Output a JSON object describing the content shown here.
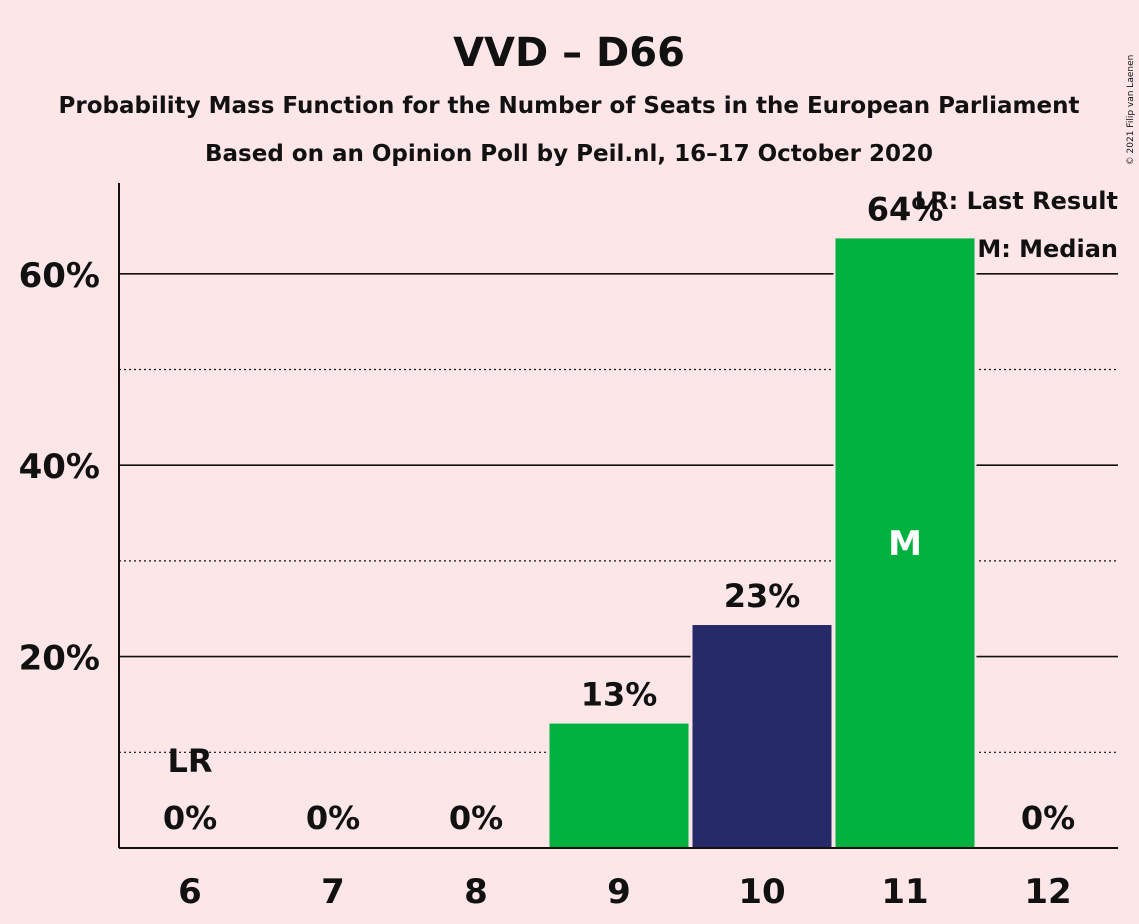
{
  "title": "VVD – D66",
  "subtitle": "Probability Mass Function for the Number of Seats in the European Parliament",
  "subtitle2": "Based on an Opinion Poll by Peil.nl, 16–17 October 2020",
  "copyright": "© 2021 Filip van Laenen",
  "legend": {
    "lr": "LR: Last Result",
    "median": "M: Median"
  },
  "colors": {
    "background": "#fce6e8",
    "green": "#00b140",
    "navy": "#262a68",
    "text": "#111111"
  },
  "chart_data": {
    "type": "bar",
    "categories": [
      "6",
      "7",
      "8",
      "9",
      "10",
      "11",
      "12"
    ],
    "values": [
      0,
      0,
      0,
      13,
      23.3,
      63.7,
      0
    ],
    "value_labels": [
      "0%",
      "0%",
      "0%",
      "13%",
      "23%",
      "64%",
      "0%"
    ],
    "bar_colors": [
      "green",
      "green",
      "green",
      "green",
      "navy",
      "green",
      "green"
    ],
    "ylim": [
      0,
      70
    ],
    "yticks": [
      20,
      40,
      60
    ],
    "ytick_labels": [
      "20%",
      "40%",
      "60%"
    ],
    "minor_gridlines": [
      10,
      30,
      50
    ],
    "last_result_category": "6",
    "last_result_label": "LR",
    "median_category": "11",
    "median_label": "M",
    "legend_position": "top-right"
  }
}
